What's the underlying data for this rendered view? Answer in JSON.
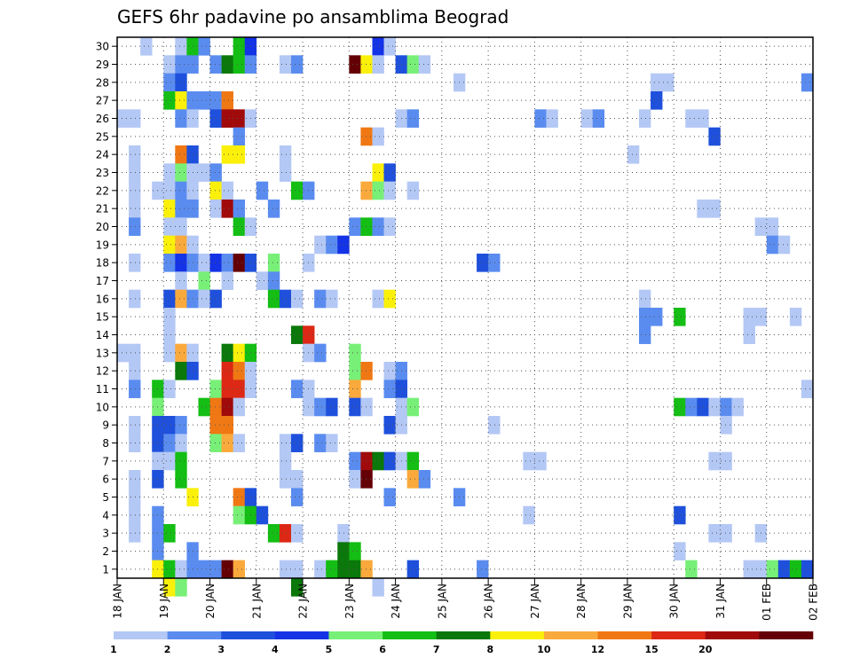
{
  "chart_data": {
    "type": "heatmap",
    "title": "GEFS 6hr padavine po ansamblima Beograd",
    "xlabel": "",
    "ylabel": "",
    "x_ticks": [
      "18 JAN",
      "19 JAN",
      "20 JAN",
      "21 JAN",
      "22 JAN",
      "23 JAN",
      "24 JAN",
      "25 JAN",
      "26 JAN",
      "27 JAN",
      "28 JAN",
      "29 JAN",
      "30 JAN",
      "31 JAN",
      "01 FEB",
      "02 FEB"
    ],
    "y_ticks": [
      "1",
      "2",
      "3",
      "4",
      "5",
      "6",
      "7",
      "8",
      "9",
      "10",
      "11",
      "12",
      "13",
      "14",
      "15",
      "16",
      "17",
      "18",
      "19",
      "20",
      "21",
      "22",
      "23",
      "24",
      "25",
      "26",
      "27",
      "28",
      "29",
      "30"
    ],
    "xlim": [
      0,
      60
    ],
    "ylim": [
      0.5,
      30.5
    ],
    "grid": true,
    "legend_position": "bottom",
    "colorbar": {
      "levels": [
        "1",
        "2",
        "3",
        "4",
        "5",
        "6",
        "7",
        "8",
        "10",
        "12",
        "15",
        "20"
      ],
      "colors": [
        "#b4c8f5",
        "#5a8cf0",
        "#1e50dc",
        "#1432e6",
        "#78f078",
        "#14be14",
        "#0a780a",
        "#faf00a",
        "#faaa3c",
        "#f07814",
        "#dc2814",
        "#a00a0a",
        "#640005"
      ]
    },
    "time_step": "6hr",
    "cells": [
      [
        2,
        30,
        0
      ],
      [
        5,
        30,
        0
      ],
      [
        6,
        30,
        5
      ],
      [
        7,
        30,
        1
      ],
      [
        10,
        30,
        5
      ],
      [
        11,
        30,
        3
      ],
      [
        22,
        30,
        3
      ],
      [
        23,
        30,
        0
      ],
      [
        4,
        29,
        0
      ],
      [
        5,
        29,
        1
      ],
      [
        6,
        29,
        1
      ],
      [
        8,
        29,
        1
      ],
      [
        9,
        29,
        6
      ],
      [
        10,
        29,
        5
      ],
      [
        11,
        29,
        1
      ],
      [
        14,
        29,
        0
      ],
      [
        15,
        29,
        1
      ],
      [
        20,
        29,
        12
      ],
      [
        21,
        29,
        7
      ],
      [
        22,
        29,
        0
      ],
      [
        24,
        29,
        2
      ],
      [
        25,
        29,
        4
      ],
      [
        26,
        29,
        0
      ],
      [
        4,
        28,
        1
      ],
      [
        5,
        28,
        2
      ],
      [
        29,
        28,
        0
      ],
      [
        46,
        28,
        0
      ],
      [
        47,
        28,
        0
      ],
      [
        59,
        28,
        1
      ],
      [
        4,
        27,
        5
      ],
      [
        5,
        27,
        7
      ],
      [
        6,
        27,
        1
      ],
      [
        7,
        27,
        1
      ],
      [
        8,
        27,
        1
      ],
      [
        9,
        27,
        9
      ],
      [
        46,
        27,
        2
      ],
      [
        0,
        26,
        0
      ],
      [
        1,
        26,
        0
      ],
      [
        5,
        26,
        1
      ],
      [
        6,
        26,
        0
      ],
      [
        8,
        26,
        2
      ],
      [
        9,
        26,
        11
      ],
      [
        10,
        26,
        11
      ],
      [
        11,
        26,
        0
      ],
      [
        24,
        26,
        0
      ],
      [
        25,
        26,
        1
      ],
      [
        36,
        26,
        1
      ],
      [
        37,
        26,
        0
      ],
      [
        40,
        26,
        0
      ],
      [
        41,
        26,
        1
      ],
      [
        45,
        26,
        0
      ],
      [
        49,
        26,
        0
      ],
      [
        50,
        26,
        0
      ],
      [
        10,
        25,
        1
      ],
      [
        21,
        25,
        9
      ],
      [
        22,
        25,
        0
      ],
      [
        51,
        25,
        2
      ],
      [
        1,
        24,
        0
      ],
      [
        5,
        24,
        9
      ],
      [
        6,
        24,
        2
      ],
      [
        9,
        24,
        7
      ],
      [
        10,
        24,
        7
      ],
      [
        14,
        24,
        0
      ],
      [
        44,
        24,
        0
      ],
      [
        1,
        23,
        0
      ],
      [
        4,
        23,
        0
      ],
      [
        5,
        23,
        4
      ],
      [
        6,
        23,
        0
      ],
      [
        7,
        23,
        0
      ],
      [
        8,
        23,
        1
      ],
      [
        14,
        23,
        0
      ],
      [
        22,
        23,
        7
      ],
      [
        23,
        23,
        2
      ],
      [
        1,
        22,
        0
      ],
      [
        3,
        22,
        0
      ],
      [
        4,
        22,
        0
      ],
      [
        5,
        22,
        1
      ],
      [
        6,
        22,
        0
      ],
      [
        8,
        22,
        7
      ],
      [
        9,
        22,
        0
      ],
      [
        12,
        22,
        1
      ],
      [
        15,
        22,
        5
      ],
      [
        16,
        22,
        1
      ],
      [
        21,
        22,
        8
      ],
      [
        22,
        22,
        4
      ],
      [
        23,
        22,
        0
      ],
      [
        25,
        22,
        0
      ],
      [
        1,
        21,
        0
      ],
      [
        4,
        21,
        7
      ],
      [
        5,
        21,
        1
      ],
      [
        6,
        21,
        1
      ],
      [
        8,
        21,
        0
      ],
      [
        9,
        21,
        11
      ],
      [
        10,
        21,
        1
      ],
      [
        13,
        21,
        1
      ],
      [
        50,
        21,
        0
      ],
      [
        51,
        21,
        0
      ],
      [
        1,
        20,
        1
      ],
      [
        4,
        20,
        0
      ],
      [
        5,
        20,
        0
      ],
      [
        10,
        20,
        5
      ],
      [
        11,
        20,
        0
      ],
      [
        20,
        20,
        1
      ],
      [
        21,
        20,
        5
      ],
      [
        22,
        20,
        1
      ],
      [
        23,
        20,
        0
      ],
      [
        55,
        20,
        0
      ],
      [
        56,
        20,
        0
      ],
      [
        4,
        19,
        7
      ],
      [
        5,
        19,
        8
      ],
      [
        6,
        19,
        0
      ],
      [
        17,
        19,
        0
      ],
      [
        18,
        19,
        1
      ],
      [
        19,
        19,
        3
      ],
      [
        56,
        19,
        1
      ],
      [
        57,
        19,
        0
      ],
      [
        1,
        18,
        0
      ],
      [
        4,
        18,
        1
      ],
      [
        5,
        18,
        3
      ],
      [
        6,
        18,
        1
      ],
      [
        7,
        18,
        0
      ],
      [
        8,
        18,
        3
      ],
      [
        9,
        18,
        1
      ],
      [
        10,
        18,
        12
      ],
      [
        11,
        18,
        2
      ],
      [
        13,
        18,
        4
      ],
      [
        16,
        18,
        0
      ],
      [
        31,
        18,
        2
      ],
      [
        32,
        18,
        1
      ],
      [
        5,
        17,
        0
      ],
      [
        7,
        17,
        4
      ],
      [
        9,
        17,
        0
      ],
      [
        12,
        17,
        0
      ],
      [
        13,
        17,
        1
      ],
      [
        1,
        16,
        0
      ],
      [
        4,
        16,
        2
      ],
      [
        5,
        16,
        8
      ],
      [
        6,
        16,
        1
      ],
      [
        7,
        16,
        0
      ],
      [
        8,
        16,
        2
      ],
      [
        13,
        16,
        5
      ],
      [
        14,
        16,
        2
      ],
      [
        15,
        16,
        0
      ],
      [
        17,
        16,
        1
      ],
      [
        18,
        16,
        0
      ],
      [
        22,
        16,
        0
      ],
      [
        23,
        16,
        7
      ],
      [
        45,
        16,
        0
      ],
      [
        4,
        15,
        0
      ],
      [
        45,
        15,
        1
      ],
      [
        46,
        15,
        1
      ],
      [
        48,
        15,
        5
      ],
      [
        54,
        15,
        0
      ],
      [
        55,
        15,
        0
      ],
      [
        58,
        15,
        0
      ],
      [
        4,
        14,
        0
      ],
      [
        15,
        14,
        6
      ],
      [
        16,
        14,
        10
      ],
      [
        45,
        14,
        1
      ],
      [
        54,
        14,
        0
      ],
      [
        0,
        13,
        0
      ],
      [
        1,
        13,
        0
      ],
      [
        4,
        13,
        0
      ],
      [
        5,
        13,
        8
      ],
      [
        6,
        13,
        0
      ],
      [
        9,
        13,
        6
      ],
      [
        10,
        13,
        7
      ],
      [
        11,
        13,
        5
      ],
      [
        16,
        13,
        0
      ],
      [
        17,
        13,
        1
      ],
      [
        20,
        13,
        4
      ],
      [
        1,
        12,
        0
      ],
      [
        5,
        12,
        6
      ],
      [
        6,
        12,
        2
      ],
      [
        9,
        12,
        10
      ],
      [
        10,
        12,
        9
      ],
      [
        11,
        12,
        0
      ],
      [
        20,
        12,
        4
      ],
      [
        21,
        12,
        9
      ],
      [
        23,
        12,
        0
      ],
      [
        24,
        12,
        1
      ],
      [
        1,
        11,
        1
      ],
      [
        3,
        11,
        5
      ],
      [
        4,
        11,
        0
      ],
      [
        8,
        11,
        4
      ],
      [
        9,
        11,
        10
      ],
      [
        10,
        11,
        10
      ],
      [
        11,
        11,
        0
      ],
      [
        15,
        11,
        1
      ],
      [
        16,
        11,
        0
      ],
      [
        20,
        11,
        8
      ],
      [
        23,
        11,
        1
      ],
      [
        24,
        11,
        2
      ],
      [
        59,
        11,
        0
      ],
      [
        3,
        10,
        4
      ],
      [
        7,
        10,
        5
      ],
      [
        8,
        10,
        9
      ],
      [
        9,
        10,
        11
      ],
      [
        10,
        10,
        0
      ],
      [
        16,
        10,
        0
      ],
      [
        17,
        10,
        1
      ],
      [
        18,
        10,
        2
      ],
      [
        20,
        10,
        2
      ],
      [
        21,
        10,
        0
      ],
      [
        24,
        10,
        0
      ],
      [
        25,
        10,
        4
      ],
      [
        48,
        10,
        5
      ],
      [
        49,
        10,
        1
      ],
      [
        50,
        10,
        2
      ],
      [
        51,
        10,
        0
      ],
      [
        52,
        10,
        1
      ],
      [
        53,
        10,
        0
      ],
      [
        1,
        9,
        0
      ],
      [
        3,
        9,
        2
      ],
      [
        4,
        9,
        2
      ],
      [
        5,
        9,
        1
      ],
      [
        8,
        9,
        9
      ],
      [
        9,
        9,
        9
      ],
      [
        23,
        9,
        2
      ],
      [
        24,
        9,
        0
      ],
      [
        32,
        9,
        0
      ],
      [
        52,
        9,
        0
      ],
      [
        1,
        8,
        0
      ],
      [
        3,
        8,
        2
      ],
      [
        4,
        8,
        1
      ],
      [
        5,
        8,
        0
      ],
      [
        8,
        8,
        4
      ],
      [
        9,
        8,
        8
      ],
      [
        10,
        8,
        0
      ],
      [
        14,
        8,
        0
      ],
      [
        15,
        8,
        2
      ],
      [
        17,
        8,
        1
      ],
      [
        18,
        8,
        0
      ],
      [
        3,
        7,
        0
      ],
      [
        4,
        7,
        0
      ],
      [
        5,
        7,
        5
      ],
      [
        14,
        7,
        0
      ],
      [
        20,
        7,
        1
      ],
      [
        21,
        7,
        11
      ],
      [
        22,
        7,
        6
      ],
      [
        23,
        7,
        2
      ],
      [
        24,
        7,
        0
      ],
      [
        25,
        7,
        5
      ],
      [
        35,
        7,
        0
      ],
      [
        36,
        7,
        0
      ],
      [
        51,
        7,
        0
      ],
      [
        52,
        7,
        0
      ],
      [
        1,
        6,
        0
      ],
      [
        3,
        6,
        2
      ],
      [
        5,
        6,
        5
      ],
      [
        14,
        6,
        0
      ],
      [
        15,
        6,
        0
      ],
      [
        20,
        6,
        0
      ],
      [
        21,
        6,
        12
      ],
      [
        25,
        6,
        8
      ],
      [
        26,
        6,
        1
      ],
      [
        1,
        5,
        0
      ],
      [
        6,
        5,
        7
      ],
      [
        10,
        5,
        9
      ],
      [
        11,
        5,
        2
      ],
      [
        15,
        5,
        1
      ],
      [
        23,
        5,
        1
      ],
      [
        29,
        5,
        1
      ],
      [
        1,
        4,
        0
      ],
      [
        3,
        4,
        1
      ],
      [
        10,
        4,
        4
      ],
      [
        11,
        4,
        5
      ],
      [
        12,
        4,
        2
      ],
      [
        35,
        4,
        0
      ],
      [
        48,
        4,
        2
      ],
      [
        1,
        3,
        0
      ],
      [
        3,
        3,
        1
      ],
      [
        4,
        3,
        5
      ],
      [
        13,
        3,
        5
      ],
      [
        14,
        3,
        10
      ],
      [
        15,
        3,
        0
      ],
      [
        19,
        3,
        0
      ],
      [
        51,
        3,
        0
      ],
      [
        52,
        3,
        0
      ],
      [
        55,
        3,
        0
      ],
      [
        3,
        2,
        1
      ],
      [
        6,
        2,
        1
      ],
      [
        19,
        2,
        6
      ],
      [
        20,
        2,
        5
      ],
      [
        48,
        2,
        0
      ],
      [
        3,
        1,
        7
      ],
      [
        4,
        1,
        5
      ],
      [
        5,
        1,
        0
      ],
      [
        6,
        1,
        1
      ],
      [
        7,
        1,
        1
      ],
      [
        8,
        1,
        1
      ],
      [
        9,
        1,
        12
      ],
      [
        10,
        1,
        8
      ],
      [
        14,
        1,
        0
      ],
      [
        15,
        1,
        0
      ],
      [
        17,
        1,
        0
      ],
      [
        18,
        1,
        5
      ],
      [
        19,
        1,
        6
      ],
      [
        20,
        1,
        6
      ],
      [
        21,
        1,
        8
      ],
      [
        25,
        1,
        2
      ],
      [
        31,
        1,
        1
      ],
      [
        49,
        1,
        4
      ],
      [
        54,
        1,
        0
      ],
      [
        55,
        1,
        0
      ],
      [
        56,
        1,
        4
      ],
      [
        57,
        1,
        2
      ],
      [
        58,
        1,
        5
      ],
      [
        59,
        1,
        2
      ],
      [
        4,
        0,
        7
      ],
      [
        5,
        0,
        4
      ],
      [
        15,
        0,
        6
      ],
      [
        22,
        0,
        0
      ]
    ]
  }
}
